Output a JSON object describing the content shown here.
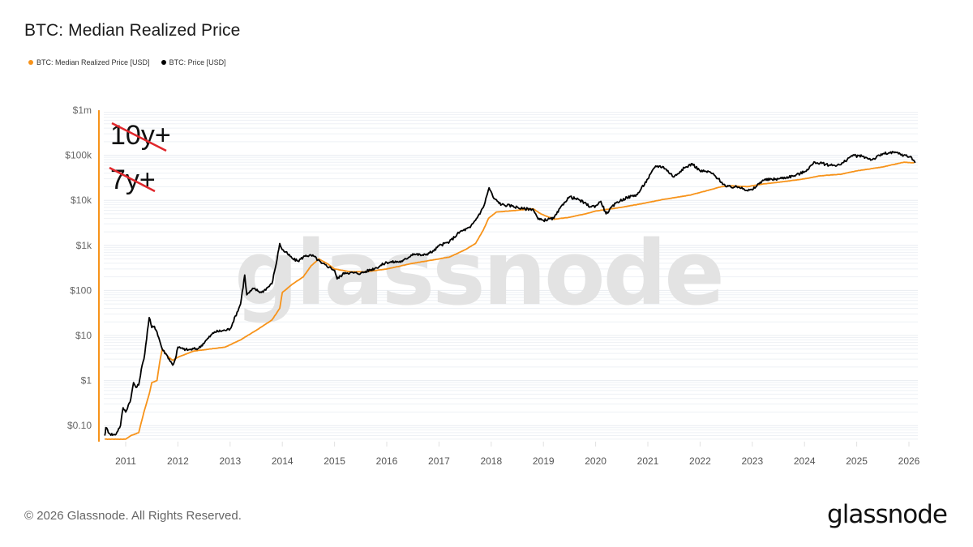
{
  "title": "BTC: Median Realized Price",
  "legend": [
    {
      "label": "BTC: Median Realized Price [USD]",
      "color": "#f7931a"
    },
    {
      "label": "BTC: Price [USD]",
      "color": "#000000"
    }
  ],
  "footer": {
    "copyright": "© 2026 Glassnode. All Rights Reserved.",
    "logo": "glassnode"
  },
  "watermark": "glassnode",
  "annotations": [
    {
      "text": "10y+",
      "struck": true,
      "strike_color": "#e0262b"
    },
    {
      "text": "7y+",
      "struck": true,
      "strike_color": "#e0262b"
    }
  ],
  "chart_data": {
    "type": "line",
    "title": "BTC: Median Realized Price",
    "xlabel": "",
    "ylabel": "",
    "yscale": "log",
    "ylim": [
      0.05,
      1000000
    ],
    "xlim": [
      2010.6,
      2026.15
    ],
    "grid": true,
    "legend_position": "top-left",
    "y_ticks": [
      {
        "value": 1000000,
        "label": "$1m"
      },
      {
        "value": 100000,
        "label": "$100k"
      },
      {
        "value": 10000,
        "label": "$10k"
      },
      {
        "value": 1000,
        "label": "$1k"
      },
      {
        "value": 100,
        "label": "$100"
      },
      {
        "value": 10,
        "label": "$10"
      },
      {
        "value": 1,
        "label": "$1"
      },
      {
        "value": 0.1,
        "label": "$0.10"
      }
    ],
    "x_ticks": [
      "2011",
      "2012",
      "2013",
      "2014",
      "2015",
      "2016",
      "2017",
      "2018",
      "2019",
      "2020",
      "2021",
      "2022",
      "2023",
      "2024",
      "2025",
      "2026"
    ],
    "series": [
      {
        "name": "BTC: Median Realized Price [USD]",
        "color": "#f7931a",
        "points": [
          [
            2010.6,
            0.05
          ],
          [
            2011.0,
            0.05
          ],
          [
            2011.1,
            0.06
          ],
          [
            2011.25,
            0.07
          ],
          [
            2011.35,
            0.2
          ],
          [
            2011.45,
            0.5
          ],
          [
            2011.5,
            0.9
          ],
          [
            2011.6,
            1.0
          ],
          [
            2011.65,
            2.5
          ],
          [
            2011.7,
            5.0
          ],
          [
            2011.8,
            3.5
          ],
          [
            2011.9,
            2.8
          ],
          [
            2012.0,
            3.3
          ],
          [
            2012.3,
            4.5
          ],
          [
            2012.6,
            5.0
          ],
          [
            2012.9,
            5.5
          ],
          [
            2013.2,
            8
          ],
          [
            2013.5,
            13
          ],
          [
            2013.8,
            22
          ],
          [
            2013.95,
            40
          ],
          [
            2014.0,
            90
          ],
          [
            2014.2,
            140
          ],
          [
            2014.4,
            200
          ],
          [
            2014.55,
            350
          ],
          [
            2014.7,
            500
          ],
          [
            2014.85,
            400
          ],
          [
            2015.0,
            300
          ],
          [
            2015.3,
            260
          ],
          [
            2015.6,
            260
          ],
          [
            2016.0,
            300
          ],
          [
            2016.5,
            400
          ],
          [
            2016.9,
            480
          ],
          [
            2017.2,
            550
          ],
          [
            2017.5,
            800
          ],
          [
            2017.7,
            1100
          ],
          [
            2017.85,
            2200
          ],
          [
            2017.95,
            4000
          ],
          [
            2018.1,
            5500
          ],
          [
            2018.5,
            6000
          ],
          [
            2018.8,
            6500
          ],
          [
            2018.95,
            5000
          ],
          [
            2019.2,
            3800
          ],
          [
            2019.5,
            4200
          ],
          [
            2019.8,
            5000
          ],
          [
            2020.0,
            5800
          ],
          [
            2020.5,
            7000
          ],
          [
            2020.9,
            8500
          ],
          [
            2021.3,
            10500
          ],
          [
            2021.8,
            13000
          ],
          [
            2022.1,
            16000
          ],
          [
            2022.4,
            20000
          ],
          [
            2022.6,
            21000
          ],
          [
            2022.9,
            20000
          ],
          [
            2023.2,
            23000
          ],
          [
            2023.6,
            26000
          ],
          [
            2024.0,
            30000
          ],
          [
            2024.3,
            35000
          ],
          [
            2024.7,
            38000
          ],
          [
            2025.0,
            45000
          ],
          [
            2025.5,
            55000
          ],
          [
            2025.9,
            70000
          ],
          [
            2026.1,
            68000
          ]
        ]
      },
      {
        "name": "BTC: Price [USD]",
        "color": "#000000",
        "points": [
          [
            2010.6,
            0.06
          ],
          [
            2010.62,
            0.09
          ],
          [
            2010.7,
            0.065
          ],
          [
            2010.8,
            0.062
          ],
          [
            2010.9,
            0.1
          ],
          [
            2010.95,
            0.25
          ],
          [
            2011.0,
            0.2
          ],
          [
            2011.1,
            0.4
          ],
          [
            2011.15,
            0.9
          ],
          [
            2011.2,
            0.7
          ],
          [
            2011.25,
            0.8
          ],
          [
            2011.3,
            1.8
          ],
          [
            2011.35,
            3
          ],
          [
            2011.45,
            25
          ],
          [
            2011.5,
            15
          ],
          [
            2011.55,
            16
          ],
          [
            2011.6,
            12
          ],
          [
            2011.7,
            5
          ],
          [
            2011.8,
            3.5
          ],
          [
            2011.9,
            2.2
          ],
          [
            2011.95,
            3.0
          ],
          [
            2012.0,
            5.5
          ],
          [
            2012.1,
            5.0
          ],
          [
            2012.2,
            4.8
          ],
          [
            2012.4,
            5.2
          ],
          [
            2012.55,
            8
          ],
          [
            2012.7,
            12
          ],
          [
            2012.9,
            13
          ],
          [
            2013.0,
            14
          ],
          [
            2013.2,
            50
          ],
          [
            2013.28,
            220
          ],
          [
            2013.32,
            80
          ],
          [
            2013.45,
            110
          ],
          [
            2013.6,
            90
          ],
          [
            2013.8,
            140
          ],
          [
            2013.9,
            500
          ],
          [
            2013.95,
            1100
          ],
          [
            2014.0,
            800
          ],
          [
            2014.1,
            650
          ],
          [
            2014.2,
            500
          ],
          [
            2014.3,
            450
          ],
          [
            2014.45,
            600
          ],
          [
            2014.6,
            580
          ],
          [
            2014.75,
            400
          ],
          [
            2014.9,
            330
          ],
          [
            2015.0,
            280
          ],
          [
            2015.05,
            180
          ],
          [
            2015.2,
            250
          ],
          [
            2015.5,
            240
          ],
          [
            2015.8,
            320
          ],
          [
            2016.0,
            420
          ],
          [
            2016.3,
            440
          ],
          [
            2016.5,
            650
          ],
          [
            2016.7,
            600
          ],
          [
            2016.9,
            750
          ],
          [
            2017.0,
            980
          ],
          [
            2017.2,
            1200
          ],
          [
            2017.4,
            2000
          ],
          [
            2017.6,
            2500
          ],
          [
            2017.75,
            4500
          ],
          [
            2017.85,
            7000
          ],
          [
            2017.96,
            19000
          ],
          [
            2018.05,
            11000
          ],
          [
            2018.2,
            8000
          ],
          [
            2018.4,
            7500
          ],
          [
            2018.6,
            6500
          ],
          [
            2018.8,
            6400
          ],
          [
            2018.9,
            3800
          ],
          [
            2019.0,
            3600
          ],
          [
            2019.2,
            4000
          ],
          [
            2019.4,
            9000
          ],
          [
            2019.5,
            12000
          ],
          [
            2019.7,
            10000
          ],
          [
            2019.9,
            7200
          ],
          [
            2020.0,
            7500
          ],
          [
            2020.1,
            9500
          ],
          [
            2020.2,
            5000
          ],
          [
            2020.4,
            9000
          ],
          [
            2020.6,
            11500
          ],
          [
            2020.8,
            13500
          ],
          [
            2021.0,
            30000
          ],
          [
            2021.15,
            58000
          ],
          [
            2021.3,
            55000
          ],
          [
            2021.5,
            33000
          ],
          [
            2021.65,
            48000
          ],
          [
            2021.85,
            65000
          ],
          [
            2022.0,
            45000
          ],
          [
            2022.2,
            42000
          ],
          [
            2022.35,
            30000
          ],
          [
            2022.5,
            20000
          ],
          [
            2022.8,
            19500
          ],
          [
            2022.9,
            16500
          ],
          [
            2023.0,
            17000
          ],
          [
            2023.2,
            28000
          ],
          [
            2023.5,
            30000
          ],
          [
            2023.8,
            35000
          ],
          [
            2024.0,
            43000
          ],
          [
            2024.2,
            70000
          ],
          [
            2024.5,
            60000
          ],
          [
            2024.7,
            62000
          ],
          [
            2024.9,
            98000
          ],
          [
            2025.1,
            95000
          ],
          [
            2025.3,
            80000
          ],
          [
            2025.5,
            108000
          ],
          [
            2025.75,
            115000
          ],
          [
            2025.9,
            100000
          ],
          [
            2026.05,
            90000
          ],
          [
            2026.12,
            68000
          ]
        ]
      }
    ]
  }
}
